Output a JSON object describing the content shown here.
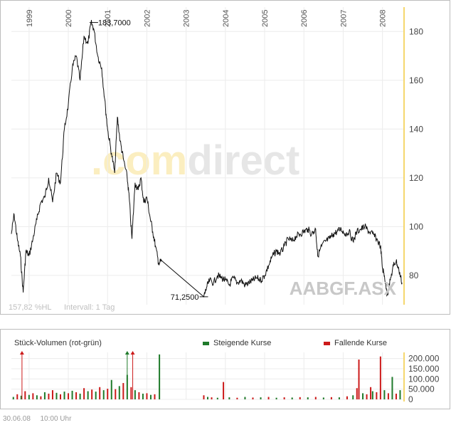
{
  "chart_data": [
    {
      "type": "line",
      "symbol": "AABGF.ASX",
      "watermark": ".comdirect",
      "footer_left": "157,82 %HL",
      "footer_interval": "Intervall: 1 Tag",
      "year_labels": [
        "1999",
        "2000",
        "2001",
        "2002",
        "2003",
        "2004",
        "2005",
        "2006",
        "2007",
        "2008"
      ],
      "y_ticks": [
        80,
        100,
        120,
        140,
        160,
        180
      ],
      "ylim": [
        68,
        190
      ],
      "xlim": [
        1998.55,
        2008.55
      ],
      "max_label": "183,7000",
      "max_point": {
        "x": 2000.65,
        "y": 183.7
      },
      "min_label": "71,2500",
      "min_point": {
        "x": 2003.45,
        "y": 71.25
      },
      "series": [
        {
          "x": [
            1998.55,
            1998.62,
            1998.7,
            1998.78,
            1998.85,
            1998.92,
            1999.0,
            1999.1,
            1999.2,
            1999.3,
            1999.4,
            1999.5,
            1999.6,
            1999.7,
            1999.8,
            1999.9,
            2000.0,
            2000.1,
            2000.2,
            2000.3,
            2000.4,
            2000.5,
            2000.58,
            2000.65,
            2000.75,
            2000.85,
            2000.95,
            2001.0,
            2001.1,
            2001.18,
            2001.25,
            2001.32,
            2001.4,
            2001.5,
            2001.55,
            2001.62,
            2001.7,
            2001.78,
            2001.85,
            2001.92,
            2002.0,
            2002.08,
            2002.15,
            2002.22,
            2002.3,
            2002.38,
            2003.45,
            2003.52,
            2003.6,
            2003.7,
            2003.8,
            2003.9,
            2004.0,
            2004.1,
            2004.2,
            2004.3,
            2004.4,
            2004.5,
            2004.6,
            2004.7,
            2004.8,
            2004.9,
            2005.0,
            2005.1,
            2005.2,
            2005.3,
            2005.4,
            2005.5,
            2005.6,
            2005.7,
            2005.8,
            2005.9,
            2006.0,
            2006.1,
            2006.2,
            2006.3,
            2006.35,
            2006.45,
            2006.55,
            2006.65,
            2006.75,
            2006.85,
            2006.95,
            2007.05,
            2007.15,
            2007.25,
            2007.35,
            2007.45,
            2007.55,
            2007.65,
            2007.75,
            2007.85,
            2007.95,
            2008.0,
            2008.05,
            2008.12,
            2008.2,
            2008.28,
            2008.35,
            2008.42,
            2008.5
          ],
          "values": [
            97,
            105,
            95,
            88,
            73,
            90,
            88,
            95,
            103,
            110,
            112,
            120,
            110,
            122,
            118,
            140,
            150,
            165,
            170,
            160,
            178,
            175,
            183.7,
            181,
            170,
            165,
            148,
            140,
            130,
            122,
            145,
            135,
            128,
            120,
            112,
            95,
            118,
            115,
            120,
            110,
            112,
            104,
            98,
            92,
            85,
            86,
            71.25,
            75,
            78,
            77,
            80,
            79,
            78,
            76,
            79,
            77,
            78,
            76,
            77,
            78,
            79,
            78,
            80,
            84,
            88,
            90,
            89,
            92,
            95,
            94,
            96,
            97,
            98,
            99,
            97,
            99,
            88,
            92,
            94,
            95,
            97,
            98,
            99,
            97,
            98,
            94,
            98,
            99,
            100,
            98,
            97,
            95,
            92,
            83,
            80,
            72,
            78,
            84,
            86,
            82,
            77
          ]
        }
      ]
    },
    {
      "type": "bar",
      "title": "Stück-Volumen (rot-grün)",
      "legend": [
        {
          "name": "Steigende Kurse",
          "color": "#1f7a2a"
        },
        {
          "name": "Fallende Kurse",
          "color": "#cc1a1a"
        }
      ],
      "y_ticks": [
        0,
        50000,
        100000,
        150000,
        200000
      ],
      "y_tick_labels": [
        "0",
        "50.000",
        "100.000",
        "150.000",
        "200.000"
      ],
      "ylim": [
        0,
        230000
      ],
      "bars": [
        {
          "x": 1998.6,
          "value": 12000,
          "color": "green"
        },
        {
          "x": 1998.7,
          "value": 25000,
          "color": "red"
        },
        {
          "x": 1998.8,
          "value": 18000,
          "color": "green"
        },
        {
          "x": 1998.9,
          "value": 40000,
          "color": "red"
        },
        {
          "x": 1999.0,
          "value": 22000,
          "color": "green"
        },
        {
          "x": 1999.1,
          "value": 30000,
          "color": "red"
        },
        {
          "x": 1999.2,
          "value": 20000,
          "color": "green"
        },
        {
          "x": 1999.3,
          "value": 15000,
          "color": "red"
        },
        {
          "x": 1999.4,
          "value": 35000,
          "color": "green"
        },
        {
          "x": 1999.5,
          "value": 28000,
          "color": "red"
        },
        {
          "x": 1999.6,
          "value": 45000,
          "color": "red"
        },
        {
          "x": 1999.7,
          "value": 32000,
          "color": "green"
        },
        {
          "x": 1999.8,
          "value": 25000,
          "color": "red"
        },
        {
          "x": 1999.9,
          "value": 38000,
          "color": "green"
        },
        {
          "x": 2000.0,
          "value": 30000,
          "color": "red"
        },
        {
          "x": 2000.1,
          "value": 42000,
          "color": "green"
        },
        {
          "x": 2000.2,
          "value": 35000,
          "color": "red"
        },
        {
          "x": 2000.3,
          "value": 28000,
          "color": "green"
        },
        {
          "x": 2000.4,
          "value": 55000,
          "color": "red"
        },
        {
          "x": 2000.5,
          "value": 40000,
          "color": "green"
        },
        {
          "x": 2000.6,
          "value": 48000,
          "color": "red"
        },
        {
          "x": 2000.7,
          "value": 38000,
          "color": "green"
        },
        {
          "x": 2000.8,
          "value": 60000,
          "color": "red"
        },
        {
          "x": 2000.9,
          "value": 45000,
          "color": "green"
        },
        {
          "x": 2001.0,
          "value": 52000,
          "color": "red"
        },
        {
          "x": 2001.1,
          "value": 95000,
          "color": "green"
        },
        {
          "x": 2001.2,
          "value": 50000,
          "color": "red"
        },
        {
          "x": 2001.3,
          "value": 65000,
          "color": "green"
        },
        {
          "x": 2001.4,
          "value": 80000,
          "color": "red"
        },
        {
          "x": 2001.5,
          "value": 120000,
          "color": "green"
        },
        {
          "x": 2001.6,
          "value": 60000,
          "color": "red"
        },
        {
          "x": 2001.7,
          "value": 45000,
          "color": "green"
        },
        {
          "x": 2001.8,
          "value": 35000,
          "color": "red"
        },
        {
          "x": 2001.9,
          "value": 28000,
          "color": "green"
        },
        {
          "x": 2002.0,
          "value": 30000,
          "color": "red"
        },
        {
          "x": 2002.1,
          "value": 22000,
          "color": "green"
        },
        {
          "x": 2002.2,
          "value": 25000,
          "color": "red"
        },
        {
          "x": 2002.32,
          "value": 220000,
          "color": "green"
        },
        {
          "x": 2003.45,
          "value": 20000,
          "color": "red"
        },
        {
          "x": 2003.55,
          "value": 12000,
          "color": "green"
        },
        {
          "x": 2003.65,
          "value": 10000,
          "color": "red"
        },
        {
          "x": 2003.8,
          "value": 8000,
          "color": "green"
        },
        {
          "x": 2003.95,
          "value": 85000,
          "color": "red"
        },
        {
          "x": 2004.1,
          "value": 10000,
          "color": "green"
        },
        {
          "x": 2004.3,
          "value": 8000,
          "color": "red"
        },
        {
          "x": 2004.5,
          "value": 12000,
          "color": "green"
        },
        {
          "x": 2004.7,
          "value": 9000,
          "color": "red"
        },
        {
          "x": 2004.9,
          "value": 10000,
          "color": "green"
        },
        {
          "x": 2005.1,
          "value": 12000,
          "color": "red"
        },
        {
          "x": 2005.3,
          "value": 8000,
          "color": "green"
        },
        {
          "x": 2005.5,
          "value": 10000,
          "color": "red"
        },
        {
          "x": 2005.7,
          "value": 9000,
          "color": "green"
        },
        {
          "x": 2005.9,
          "value": 11000,
          "color": "red"
        },
        {
          "x": 2006.1,
          "value": 10000,
          "color": "green"
        },
        {
          "x": 2006.3,
          "value": 12000,
          "color": "red"
        },
        {
          "x": 2006.5,
          "value": 9000,
          "color": "green"
        },
        {
          "x": 2006.7,
          "value": 11000,
          "color": "red"
        },
        {
          "x": 2006.9,
          "value": 10000,
          "color": "green"
        },
        {
          "x": 2007.1,
          "value": 15000,
          "color": "red"
        },
        {
          "x": 2007.25,
          "value": 20000,
          "color": "green"
        },
        {
          "x": 2007.35,
          "value": 55000,
          "color": "red"
        },
        {
          "x": 2007.4,
          "value": 195000,
          "color": "red"
        },
        {
          "x": 2007.5,
          "value": 30000,
          "color": "green"
        },
        {
          "x": 2007.6,
          "value": 25000,
          "color": "red"
        },
        {
          "x": 2007.7,
          "value": 60000,
          "color": "red"
        },
        {
          "x": 2007.75,
          "value": 40000,
          "color": "green"
        },
        {
          "x": 2007.85,
          "value": 35000,
          "color": "red"
        },
        {
          "x": 2007.95,
          "value": 210000,
          "color": "red"
        },
        {
          "x": 2008.05,
          "value": 45000,
          "color": "green"
        },
        {
          "x": 2008.15,
          "value": 30000,
          "color": "red"
        },
        {
          "x": 2008.25,
          "value": 110000,
          "color": "green"
        },
        {
          "x": 2008.35,
          "value": 28000,
          "color": "red"
        },
        {
          "x": 2008.45,
          "value": 45000,
          "color": "green"
        }
      ],
      "overflow_arrows": [
        {
          "x": 1998.82,
          "color": "red"
        },
        {
          "x": 2001.5,
          "color": "green"
        },
        {
          "x": 2001.64,
          "color": "red"
        }
      ]
    }
  ],
  "footer": {
    "date": "30.06.08",
    "time": "10:00 Uhr"
  }
}
